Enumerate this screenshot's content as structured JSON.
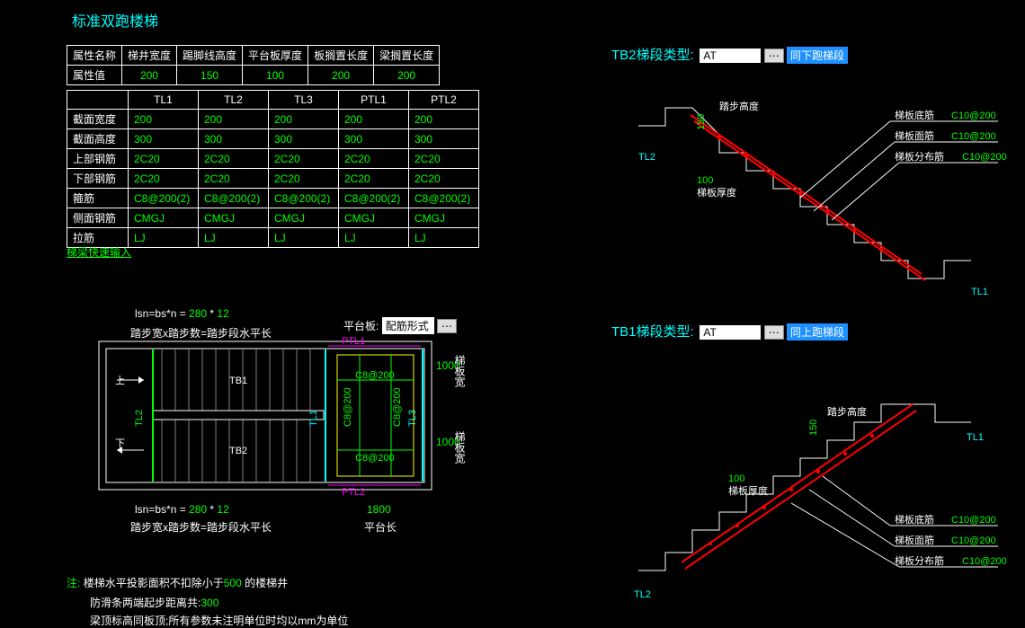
{
  "title": "标准双跑楼梯",
  "table1": {
    "headers": [
      "属性名称",
      "梯井宽度",
      "踢脚线高度",
      "平台板厚度",
      "板搁置长度",
      "梁搁置长度"
    ],
    "row_label": "属性值",
    "values": [
      "200",
      "150",
      "100",
      "200",
      "200"
    ]
  },
  "table2": {
    "col_headers": [
      "",
      "TL1",
      "TL2",
      "TL3",
      "PTL1",
      "PTL2"
    ],
    "rows": [
      {
        "label": "截面宽度",
        "cells": [
          "200",
          "200",
          "200",
          "200",
          "200"
        ]
      },
      {
        "label": "截面高度",
        "cells": [
          "300",
          "300",
          "300",
          "300",
          "300"
        ]
      },
      {
        "label": "上部钢筋",
        "cells": [
          "2C20",
          "2C20",
          "2C20",
          "2C20",
          "2C20"
        ]
      },
      {
        "label": "下部钢筋",
        "cells": [
          "2C20",
          "2C20",
          "2C20",
          "2C20",
          "2C20"
        ]
      },
      {
        "label": "箍筋",
        "cells": [
          "C8@200(2)",
          "C8@200(2)",
          "C8@200(2)",
          "C8@200(2)",
          "C8@200(2)"
        ]
      },
      {
        "label": "侧面钢筋",
        "cells": [
          "CMGJ",
          "CMGJ",
          "CMGJ",
          "CMGJ",
          "CMGJ"
        ]
      },
      {
        "label": "拉筋",
        "cells": [
          "LJ",
          "LJ",
          "LJ",
          "LJ",
          "LJ"
        ]
      }
    ]
  },
  "quick_link": "梯梁快速输入",
  "plan": {
    "formula_prefix": "lsn=bs*n = ",
    "formula_v1": "280",
    "formula_sep": " * ",
    "formula_v2": "12",
    "formula_caption": "踏步宽x踏步数=踏步段水平长",
    "platform_label": "平台板:",
    "platform_value": "配筋形式",
    "up": "上",
    "down": "下",
    "tb1": "TB1",
    "tb2": "TB2",
    "tl1": "TL1",
    "tl2": "TL2",
    "tl3": "TL3",
    "ptl1": "PTL1",
    "ptl2": "PTL2",
    "c8": "C8@200",
    "dim_1000": "1000",
    "dim_1800": "1800",
    "side_label": "梯板宽",
    "platform_len": "平台长"
  },
  "tb2_section": {
    "title": "TB2梯段类型:",
    "input": "AT",
    "button": "同下跑梯段",
    "step_h": "踏步高度",
    "step_h_val": "150",
    "slab_t": "梯板厚度",
    "slab_t_val": "100",
    "tl2": "TL2",
    "tl1": "TL1",
    "lbl_bottom": "梯板底筋",
    "lbl_top": "梯板面筋",
    "lbl_dist": "梯板分布筋",
    "rebar": "C10@200"
  },
  "tb1_section": {
    "title": "TB1梯段类型:",
    "input": "AT",
    "button": "同上跑梯段",
    "step_h": "踏步高度",
    "step_h_val": "150",
    "slab_t": "梯板厚度",
    "slab_t_val": "100",
    "tl2": "TL2",
    "tl1": "TL1",
    "lbl_bottom": "梯板底筋",
    "lbl_top": "梯板面筋",
    "lbl_dist": "梯板分布筋",
    "rebar": "C10@200"
  },
  "notes": {
    "prefix": "注:",
    "line1a": "楼梯水平投影面积不扣除小于",
    "line1b": "500",
    "line1c": " 的楼梯井",
    "line2a": "防滑条两端起步距离共:",
    "line2b": "300",
    "line3": "梁顶标高同板顶;所有参数未注明单位时均以mm为单位"
  },
  "colors": {
    "bg": "#000000",
    "cyan": "#00ffff",
    "green": "#00ff00",
    "magenta": "#ff00ff",
    "yellow": "#ffff00",
    "red": "#ff0000",
    "white": "#ffffff",
    "gray": "#808080"
  }
}
